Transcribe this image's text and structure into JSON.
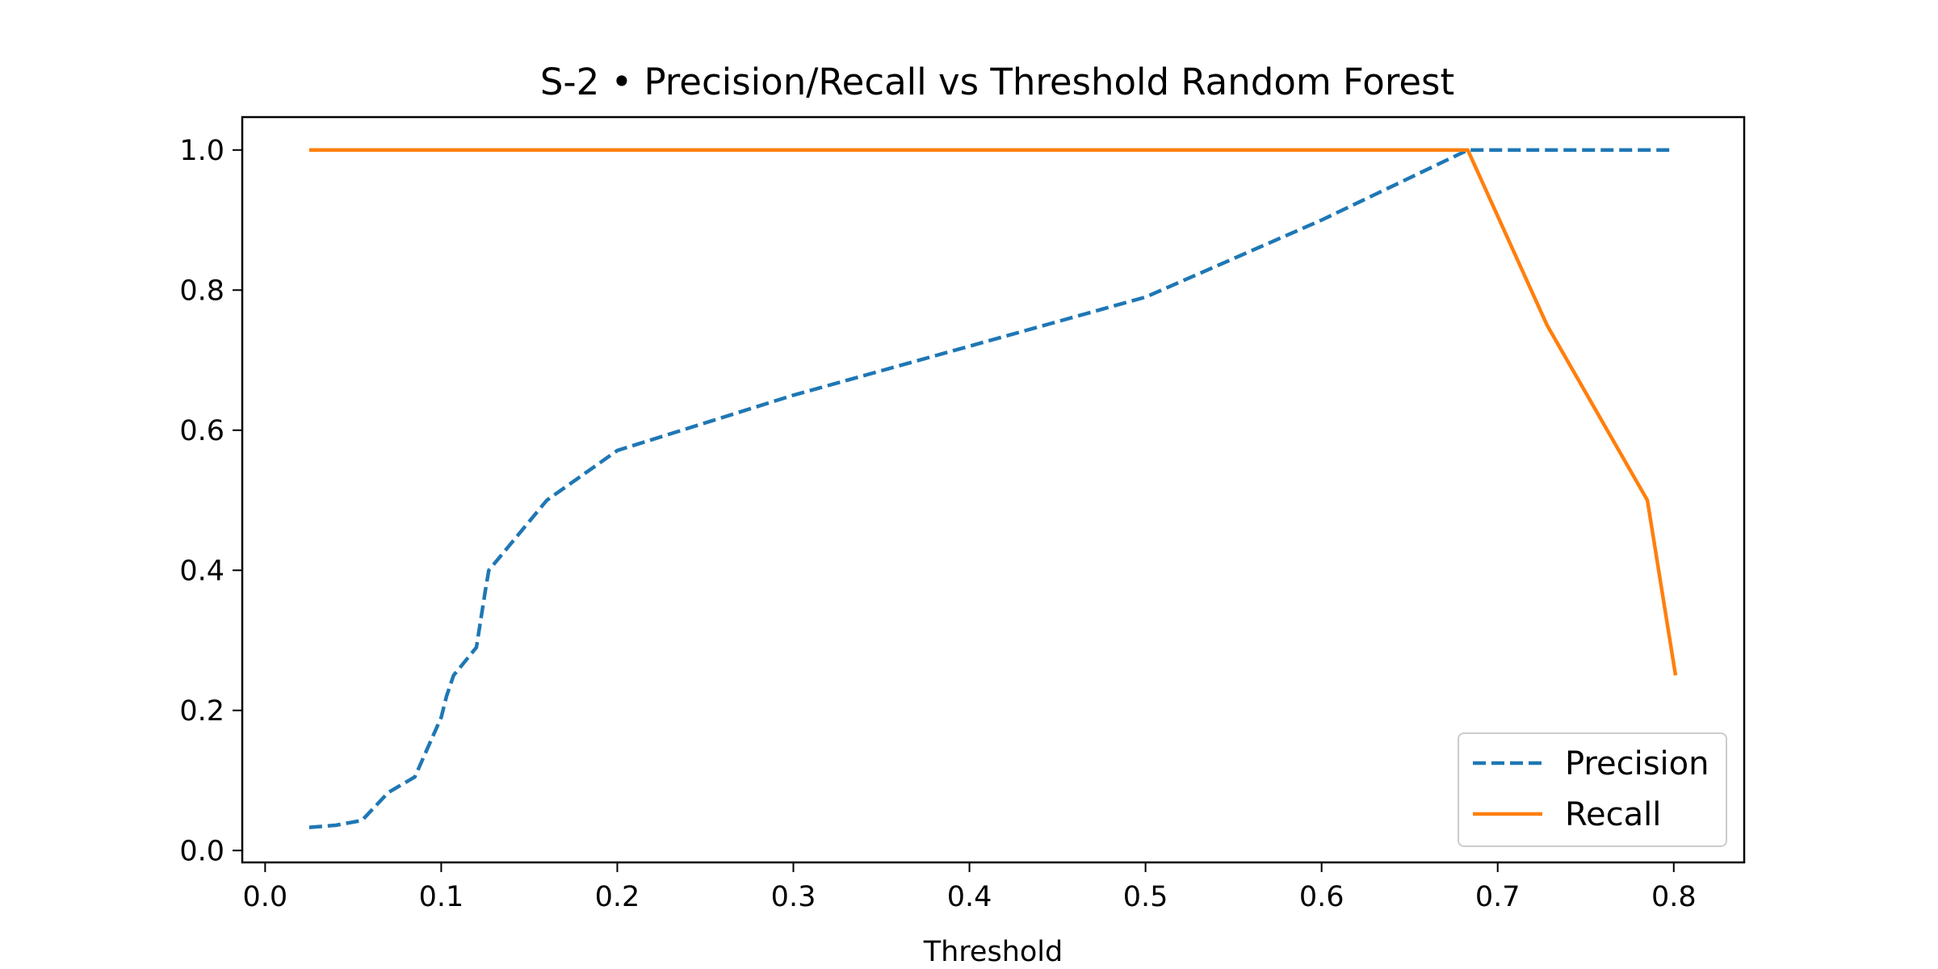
{
  "chart_data": {
    "type": "line",
    "title": "S-2 • Precision/Recall vs Threshold Random Forest",
    "xlabel": "Threshold",
    "ylabel": "",
    "xlim": [
      -0.013,
      0.84
    ],
    "ylim": [
      -0.017,
      1.047
    ],
    "x_ticks": [
      0.0,
      0.1,
      0.2,
      0.3,
      0.4,
      0.5,
      0.6,
      0.7,
      0.8
    ],
    "x_tick_labels": [
      "0.0",
      "0.1",
      "0.2",
      "0.3",
      "0.4",
      "0.5",
      "0.6",
      "0.7",
      "0.8"
    ],
    "y_ticks": [
      0.0,
      0.2,
      0.4,
      0.6,
      0.8,
      1.0
    ],
    "y_tick_labels": [
      "0.0",
      "0.2",
      "0.4",
      "0.6",
      "0.8",
      "1.0"
    ],
    "grid": false,
    "legend_position": "lower-right",
    "series": [
      {
        "name": "Precision",
        "color": "#1f77b4",
        "style": "dashed",
        "x": [
          0.025,
          0.04,
          0.055,
          0.07,
          0.085,
          0.1,
          0.103,
          0.107,
          0.12,
          0.125,
          0.127,
          0.16,
          0.2,
          0.3,
          0.4,
          0.5,
          0.6,
          0.683,
          0.8
        ],
        "y": [
          0.033,
          0.036,
          0.043,
          0.083,
          0.105,
          0.19,
          0.22,
          0.25,
          0.29,
          0.37,
          0.4,
          0.5,
          0.571,
          0.65,
          0.72,
          0.79,
          0.9,
          1.0,
          1.0
        ]
      },
      {
        "name": "Recall",
        "color": "#ff7f0e",
        "style": "solid",
        "x": [
          0.025,
          0.683,
          0.728,
          0.785,
          0.801
        ],
        "y": [
          1.0,
          1.0,
          0.75,
          0.5,
          0.25
        ]
      }
    ]
  }
}
